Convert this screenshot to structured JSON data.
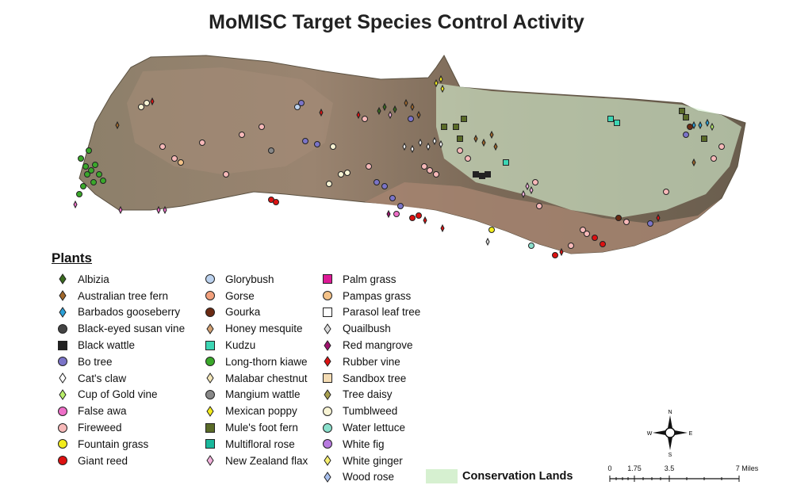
{
  "title": "MoMISC Target Species Control Activity",
  "legend": {
    "heading": "Plants",
    "columns": [
      [
        {
          "label": "Albizia",
          "shape": "diamond",
          "color": "#3a6b1f"
        },
        {
          "label": "Australian tree fern",
          "shape": "diamond",
          "color": "#a0672a"
        },
        {
          "label": "Barbados gooseberry",
          "shape": "diamond",
          "color": "#2aa0d8"
        },
        {
          "label": "Black-eyed susan vine",
          "shape": "circle",
          "color": "#444444"
        },
        {
          "label": "Black wattle",
          "shape": "square",
          "color": "#222222"
        },
        {
          "label": "Bo tree",
          "shape": "circle",
          "color": "#7b74c8"
        },
        {
          "label": "Cat's claw",
          "shape": "diamond",
          "color": "#ffffff"
        },
        {
          "label": "Cup of Gold vine",
          "shape": "diamond",
          "color": "#b8ee6a"
        },
        {
          "label": "False awa",
          "shape": "circle",
          "color": "#ee6fc8"
        },
        {
          "label": "Fireweed",
          "shape": "circle",
          "color": "#f7b9b9"
        },
        {
          "label": "Fountain grass",
          "shape": "circle",
          "color": "#f2ec1c"
        },
        {
          "label": "Giant reed",
          "shape": "circle",
          "color": "#dd1111"
        }
      ],
      [
        {
          "label": "Glorybush",
          "shape": "circle",
          "color": "#bcd2ee"
        },
        {
          "label": "Gorse",
          "shape": "circle",
          "color": "#f2a07c"
        },
        {
          "label": "Gourka",
          "shape": "circle",
          "color": "#6b2a12"
        },
        {
          "label": "Honey mesquite",
          "shape": "diamond",
          "color": "#d2a072"
        },
        {
          "label": "Kudzu",
          "shape": "square",
          "color": "#3cd6b4"
        },
        {
          "label": "Long-thorn kiawe",
          "shape": "circle",
          "color": "#3aa82a"
        },
        {
          "label": "Malabar chestnut",
          "shape": "diamond",
          "color": "#f4e6b8"
        },
        {
          "label": "Mangium wattle",
          "shape": "circle",
          "color": "#888888"
        },
        {
          "label": "Mexican poppy",
          "shape": "diamond",
          "color": "#f4ec1c"
        },
        {
          "label": "Mule's foot fern",
          "shape": "square",
          "color": "#5a6b28"
        },
        {
          "label": "Multifloral rose",
          "shape": "square",
          "color": "#1ab89c"
        },
        {
          "label": "New Zealand flax",
          "shape": "diamond",
          "color": "#f2b2dc"
        }
      ],
      [
        {
          "label": "Palm grass",
          "shape": "square",
          "color": "#dd1a96"
        },
        {
          "label": "Pampas grass",
          "shape": "circle",
          "color": "#f4c288"
        },
        {
          "label": "Parasol leaf tree",
          "shape": "square",
          "color": "#ffffff"
        },
        {
          "label": "Quailbush",
          "shape": "diamond",
          "color": "#dcdcdc"
        },
        {
          "label": "Red mangrove",
          "shape": "diamond",
          "color": "#a0126e"
        },
        {
          "label": "Rubber vine",
          "shape": "diamond",
          "color": "#dd1111"
        },
        {
          "label": "Sandbox tree",
          "shape": "square",
          "color": "#f4dcb4"
        },
        {
          "label": "Tree daisy",
          "shape": "diamond",
          "color": "#a8a050"
        },
        {
          "label": "Tumblweed",
          "shape": "circle",
          "color": "#f8f4d4"
        },
        {
          "label": "Water lettuce",
          "shape": "circle",
          "color": "#8ae0cc"
        },
        {
          "label": "White fig",
          "shape": "circle",
          "color": "#b87ae0"
        },
        {
          "label": "White ginger",
          "shape": "diamond",
          "color": "#f8f070"
        },
        {
          "label": "Wood rose",
          "shape": "diamond",
          "color": "#a8c0ee"
        }
      ]
    ],
    "conservation_label": "Conservation Lands",
    "conservation_color": "#d6f0d0"
  },
  "scale_bar": {
    "labels": [
      "0",
      "1.75",
      "3.5",
      "7 Miles"
    ],
    "values": [
      0,
      1.75,
      3.5,
      7
    ]
  },
  "compass": {
    "n": "N",
    "s": "S",
    "e": "E",
    "w": "W"
  },
  "colors": {
    "island_land": "#7a6e58",
    "island_dry": "#b89a86",
    "conservation": "#d6f0d0"
  }
}
